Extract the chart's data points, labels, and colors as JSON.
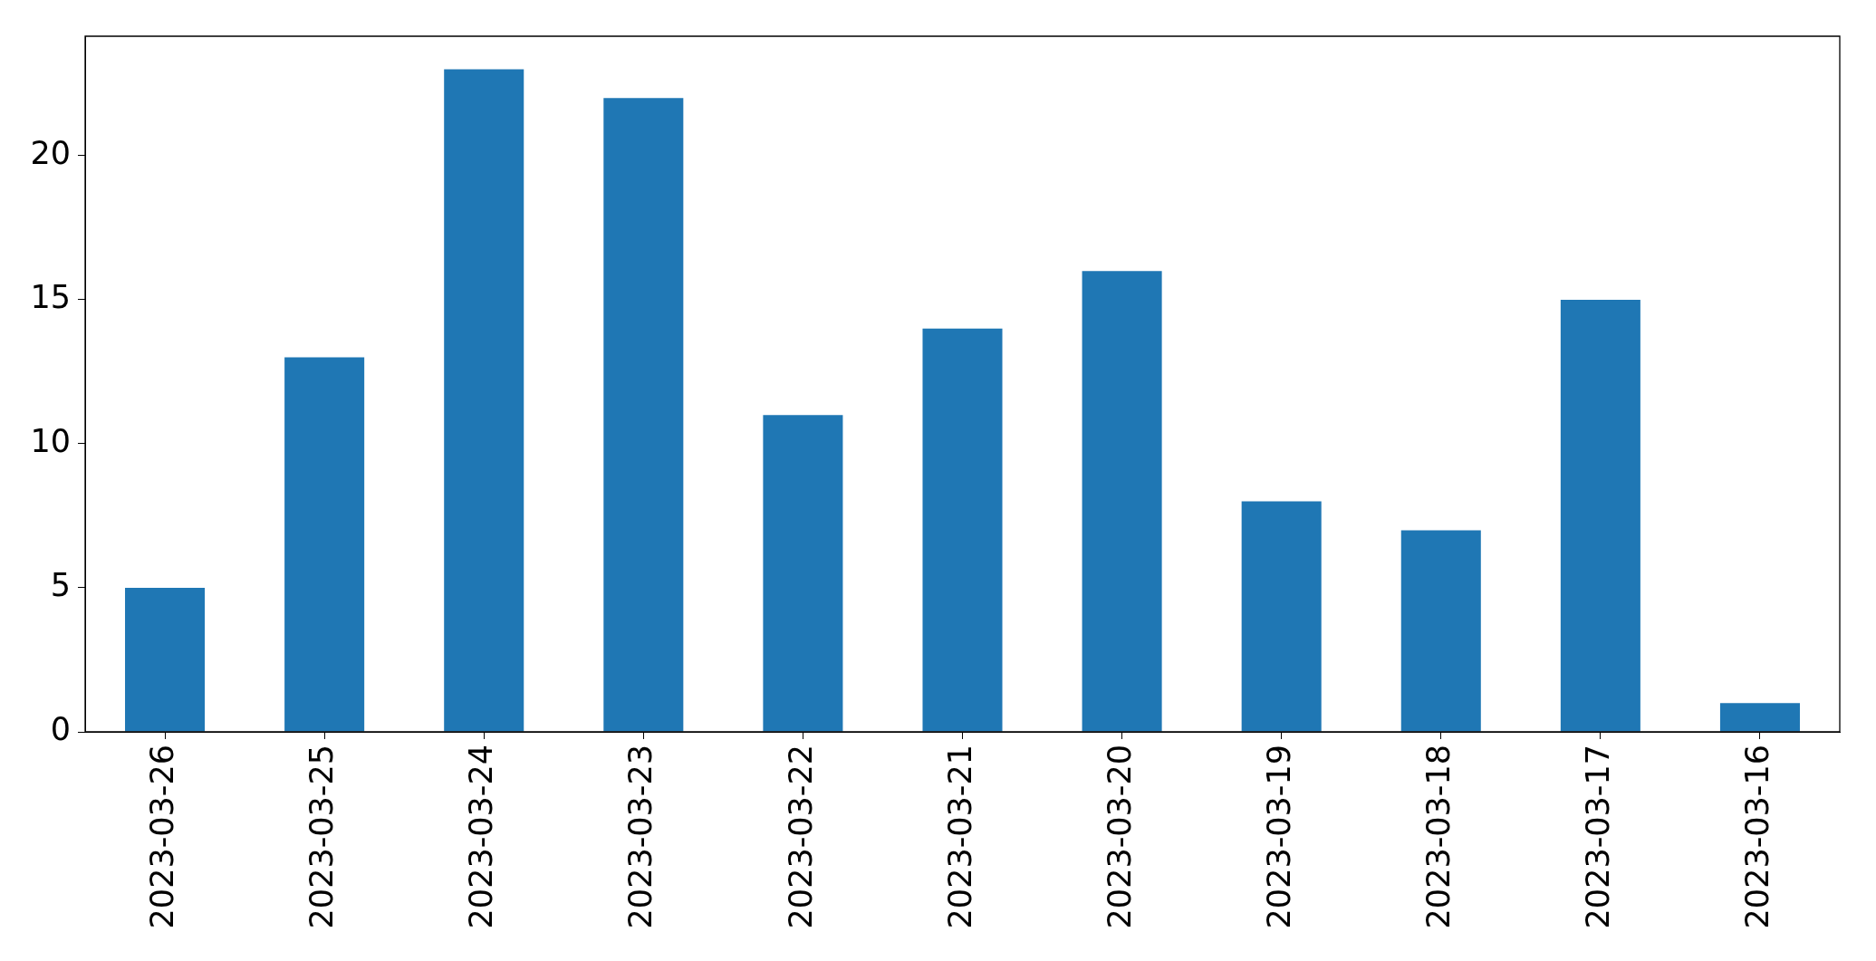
{
  "chart_data": {
    "type": "bar",
    "categories": [
      "2023-03-26",
      "2023-03-25",
      "2023-03-24",
      "2023-03-23",
      "2023-03-22",
      "2023-03-21",
      "2023-03-20",
      "2023-03-19",
      "2023-03-18",
      "2023-03-17",
      "2023-03-16"
    ],
    "values": [
      5,
      13,
      23,
      22,
      11,
      14,
      16,
      8,
      7,
      15,
      1
    ],
    "color": "#1f77b4",
    "ylim": [
      0,
      24.15
    ],
    "yticks": [
      0,
      5,
      10,
      15,
      20
    ],
    "grid": false,
    "legend": false
  }
}
